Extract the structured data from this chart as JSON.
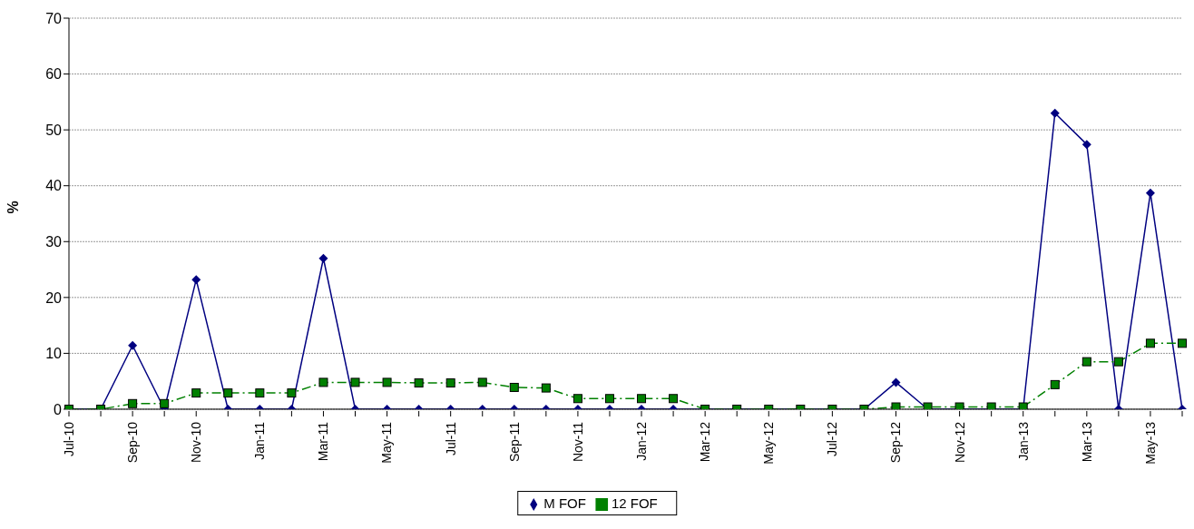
{
  "chart_data": {
    "type": "line",
    "ylabel": "%",
    "categories": [
      "Jul-10",
      null,
      "Sep-10",
      null,
      "Nov-10",
      null,
      "Jan-11",
      null,
      "Mar-11",
      null,
      "May-11",
      null,
      "Jul-11",
      null,
      "Sep-11",
      null,
      "Nov-11",
      null,
      "Jan-12",
      null,
      "Mar-12",
      null,
      "May-12",
      null,
      "Jul-12",
      null,
      "Sep-12",
      null,
      "Nov-12",
      null,
      "Jan-13",
      null,
      "Mar-13",
      null,
      "May-13",
      null
    ],
    "series": [
      {
        "name": "M FOF",
        "color": "#000080",
        "marker": "diamond",
        "line_style": "solid",
        "values": [
          0,
          0,
          11.4,
          0,
          23.2,
          0,
          0,
          0,
          27,
          0,
          0,
          0,
          0,
          0,
          0,
          0,
          0,
          0,
          0,
          0,
          0,
          0,
          0,
          0,
          0,
          0,
          4.8,
          0,
          0,
          0,
          0,
          53,
          47.4,
          0,
          38.7,
          0
        ]
      },
      {
        "name": "12 FOF",
        "color": "#008000",
        "marker": "square",
        "line_style": "dashed",
        "values": [
          0,
          0,
          1,
          1,
          2.9,
          2.9,
          2.9,
          2.9,
          4.8,
          4.8,
          4.8,
          4.7,
          4.7,
          4.8,
          3.9,
          3.8,
          1.9,
          1.9,
          1.9,
          1.9,
          0,
          0,
          0,
          0,
          0,
          0,
          0.4,
          0.4,
          0.4,
          0.4,
          0.4,
          4.4,
          8.5,
          8.5,
          11.8,
          11.8
        ]
      }
    ],
    "ylim": [
      0,
      70
    ],
    "yticks": [
      0,
      10,
      20,
      30,
      40,
      50,
      60,
      70
    ],
    "grid": "y",
    "legend": "bottom"
  }
}
